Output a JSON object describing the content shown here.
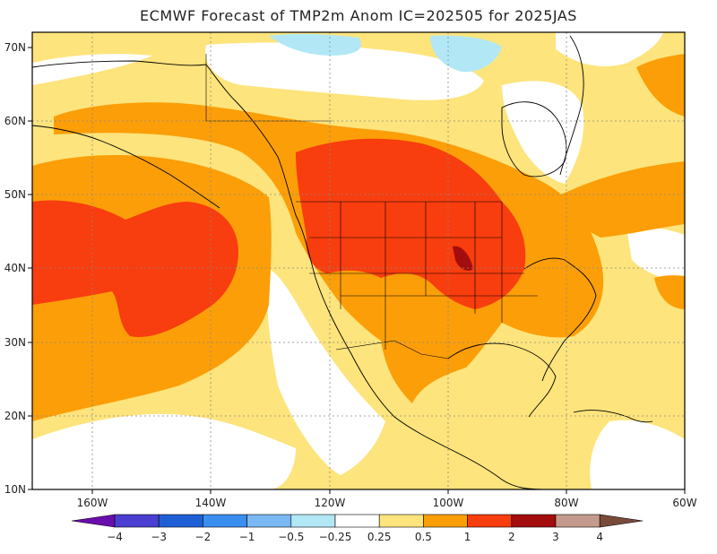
{
  "title": "ECMWF Forecast of TMP2m Anom IC=202505 for 2025JAS",
  "map": {
    "lat_labels": [
      "70N",
      "60N",
      "50N",
      "40N",
      "30N",
      "20N",
      "10N"
    ],
    "lon_labels": [
      "160W",
      "140W",
      "120W",
      "100W",
      "80W",
      "60W"
    ],
    "lat_range": [
      10,
      72
    ],
    "lon_range": [
      -170,
      -60
    ]
  },
  "colorbar": {
    "labels": [
      "−4",
      "−3",
      "−2",
      "−1",
      "−0.5",
      "−0.25",
      "0.25",
      "0.5",
      "1",
      "2",
      "3",
      "4"
    ],
    "colors": [
      "#6a0dad",
      "#4a3fd0",
      "#1e5fd6",
      "#3a8ef0",
      "#7ab8f4",
      "#b2e8f5",
      "#ffffff",
      "#fde47c",
      "#fb9e08",
      "#f83d0e",
      "#a30d0d",
      "#c49a8c",
      "#7a4a3a"
    ]
  },
  "palette": {
    "ocean_neutral": "#ffffff",
    "warm_025": "#fde47c",
    "warm_05": "#fb9e08",
    "warm_1": "#f83d0e",
    "warm_2": "#a30d0d",
    "cool_025": "#b2e8f5"
  }
}
